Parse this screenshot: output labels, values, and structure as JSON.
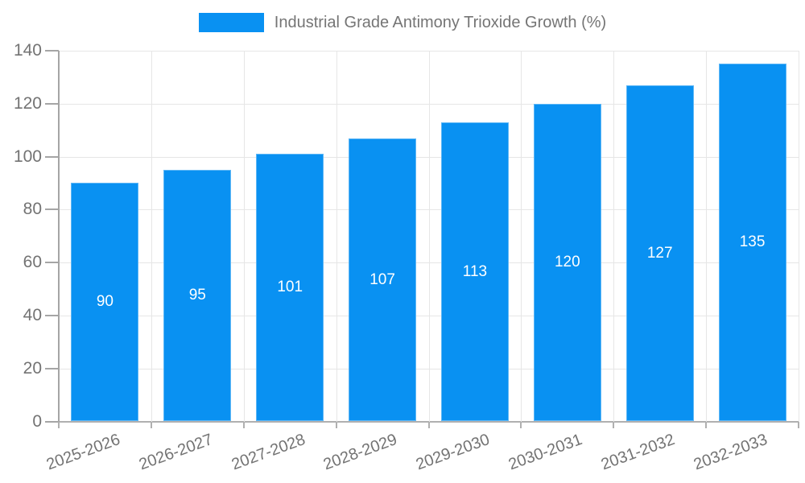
{
  "legend": {
    "label": "Industrial Grade Antimony Trioxide Growth (%)"
  },
  "colors": {
    "bar": "#0991f2",
    "grid": "#e6e6e6",
    "axis": "#b0b0b0",
    "text": "#737373",
    "value_label": "#ffffff",
    "background": "#ffffff"
  },
  "chart_data": {
    "type": "bar",
    "title": "Industrial Grade Antimony Trioxide Growth (%)",
    "series_name": "Industrial Grade Antimony Trioxide Growth (%)",
    "categories": [
      "2025-2026",
      "2026-2027",
      "2027-2028",
      "2028-2029",
      "2029-2030",
      "2030-2031",
      "2031-2032",
      "2032-2033"
    ],
    "values": [
      90,
      95,
      101,
      107,
      113,
      120,
      127,
      135
    ],
    "value_labels": [
      "90",
      "95",
      "101",
      "107",
      "113",
      "120",
      "127",
      "135"
    ],
    "xlabel": "",
    "ylabel": "",
    "ylim": [
      0,
      140
    ],
    "yticks": [
      0,
      20,
      40,
      60,
      80,
      100,
      120,
      140
    ],
    "grid": true,
    "legend_position": "top",
    "value_label_position": "inside-middle",
    "x_tick_rotation_deg": -20
  }
}
